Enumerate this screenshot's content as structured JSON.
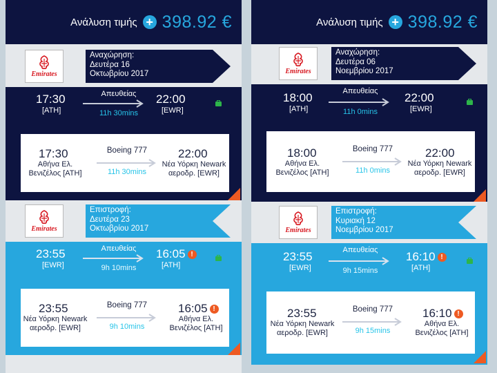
{
  "panels": [
    {
      "price": {
        "label": "Ανάλυση τιμής",
        "value": "398.92 €"
      },
      "outbound": {
        "airline": "Emirates",
        "header": {
          "title": "Αναχώρηση:",
          "date_line1": "Δευτέρα 16",
          "date_line2": "Οκτωβρίου 2017"
        },
        "summary": {
          "dep_time": "17:30",
          "dep_code": "[ATH]",
          "arr_time": "22:00",
          "arr_code": "[EWR]",
          "stops": "Απευθείας",
          "duration": "11h 30mins"
        },
        "detail": {
          "dep_time": "17:30",
          "dep_place1": "Αθήνα Ελ.",
          "dep_place2": "Βενιζέλος [ATH]",
          "aircraft": "Boeing 777",
          "duration": "11h 30mins",
          "arr_time": "22:00",
          "arr_place1": "Νέα Υόρκη Newark",
          "arr_place2": "αεροδρ. [EWR]"
        }
      },
      "inbound": {
        "airline": "Emirates",
        "header": {
          "title": "Επιστροφή:",
          "date_line1": "Δευτέρα 23",
          "date_line2": "Οκτωβρίου 2017"
        },
        "summary": {
          "dep_time": "23:55",
          "dep_code": "[EWR]",
          "arr_time": "16:05",
          "arr_code": "[ATH]",
          "stops": "Απευθείας",
          "duration": "9h 10mins"
        },
        "detail": {
          "dep_time": "23:55",
          "dep_place1": "Νέα Υόρκη Newark",
          "dep_place2": "αεροδρ. [EWR]",
          "aircraft": "Boeing 777",
          "duration": "9h 10mins",
          "arr_time": "16:05",
          "arr_place1": "Αθήνα Ελ.",
          "arr_place2": "Βενιζέλος [ATH]"
        }
      }
    },
    {
      "price": {
        "label": "Ανάλυση τιμής",
        "value": "398.92 €"
      },
      "outbound": {
        "airline": "Emirates",
        "header": {
          "title": "Αναχώρηση:",
          "date_line1": "Δευτέρα 06",
          "date_line2": "Νοεμβρίου 2017"
        },
        "summary": {
          "dep_time": "18:00",
          "dep_code": "[ATH]",
          "arr_time": "22:00",
          "arr_code": "[EWR]",
          "stops": "Απευθείας",
          "duration": "11h 0mins"
        },
        "detail": {
          "dep_time": "18:00",
          "dep_place1": "Αθήνα Ελ.",
          "dep_place2": "Βενιζέλος [ATH]",
          "aircraft": "Boeing 777",
          "duration": "11h 0mins",
          "arr_time": "22:00",
          "arr_place1": "Νέα Υόρκη Newark",
          "arr_place2": "αεροδρ. [EWR]"
        }
      },
      "inbound": {
        "airline": "Emirates",
        "header": {
          "title": "Επιστροφή:",
          "date_line1": "Κυριακή 12",
          "date_line2": "Νοεμβρίου 2017"
        },
        "summary": {
          "dep_time": "23:55",
          "dep_code": "[EWR]",
          "arr_time": "16:10",
          "arr_code": "[ATH]",
          "stops": "Απευθείας",
          "duration": "9h 15mins"
        },
        "detail": {
          "dep_time": "23:55",
          "dep_place1": "Νέα Υόρκη Newark",
          "dep_place2": "αεροδρ. [EWR]",
          "aircraft": "Boeing 777",
          "duration": "9h 15mins",
          "arr_time": "16:10",
          "arr_place1": "Αθήνα Ελ.",
          "arr_place2": "Βενιζέλος [ATH]"
        }
      }
    }
  ],
  "icons": {
    "add": "plus-circle-icon",
    "baggage": "baggage-icon",
    "warning": "warning-icon",
    "arrow": "arrow-right-icon",
    "logo": "emirates-logo"
  },
  "colors": {
    "navy": "#0d1440",
    "blue": "#27a7de",
    "cyan": "#27c4e8",
    "orange": "#ee5a22",
    "red": "#d71921",
    "green": "#2db54a"
  }
}
